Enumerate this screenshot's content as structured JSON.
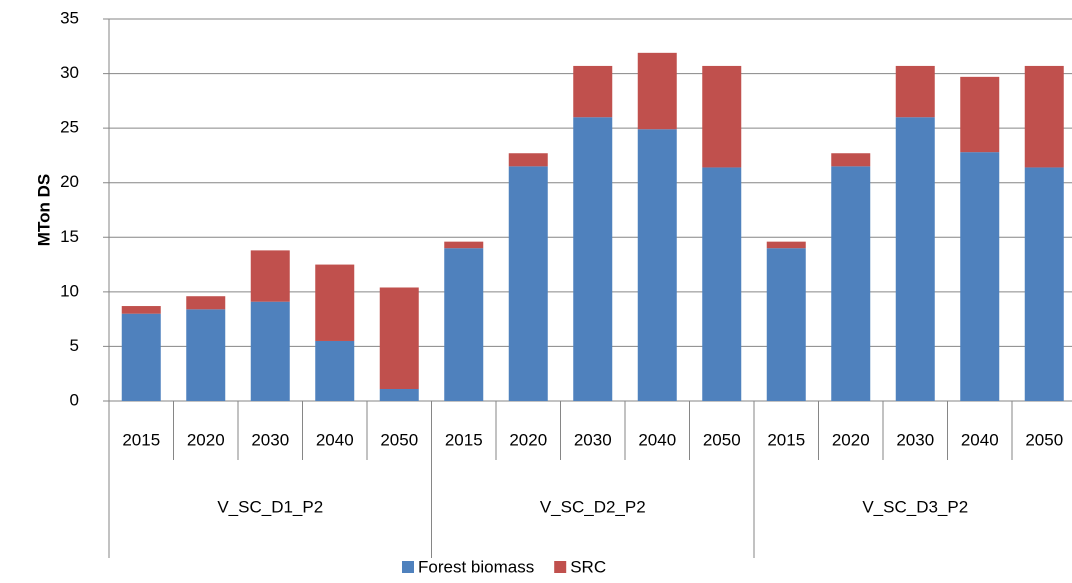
{
  "chart_data": {
    "type": "stacked-bar",
    "y_label": "MTon DS",
    "categories": [
      "2015",
      "2020",
      "2030",
      "2040",
      "2050",
      "2015",
      "2020",
      "2030",
      "2040",
      "2050",
      "2015",
      "2020",
      "2030",
      "2040",
      "2050"
    ],
    "groups": [
      "V_SC_D1_P2",
      "V_SC_D2_P2",
      "V_SC_D3_P2"
    ],
    "series": [
      {
        "name": "Forest biomass",
        "color": "#4f81bd",
        "values": [
          8.0,
          8.4,
          9.1,
          5.5,
          1.1,
          14.0,
          21.5,
          26.0,
          24.9,
          21.4,
          14.0,
          21.5,
          26.0,
          22.8,
          21.4
        ]
      },
      {
        "name": "SRC",
        "color": "#c0504d",
        "values": [
          0.7,
          1.2,
          4.7,
          7.0,
          9.3,
          0.6,
          1.2,
          4.7,
          7.0,
          9.3,
          0.6,
          1.2,
          4.7,
          6.9,
          9.3
        ]
      }
    ],
    "ylim": [
      0,
      35
    ],
    "yticks": [
      0,
      5,
      10,
      15,
      20,
      25,
      30,
      35
    ],
    "grid": true
  }
}
